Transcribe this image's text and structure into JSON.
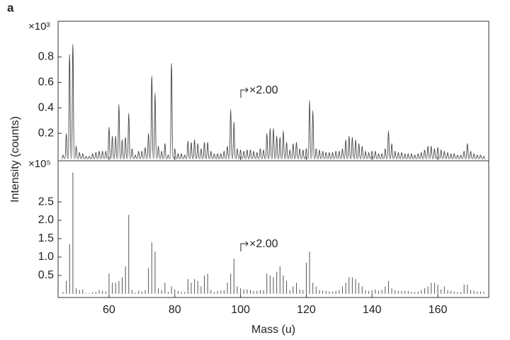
{
  "panel_label": "a",
  "y_label": "Intensity (counts)",
  "x_label": "Mass (u)",
  "chart_data": [
    {
      "type": "area",
      "multiplier": "×10³",
      "annotation": "×2.00",
      "color": "#444444",
      "x": [
        46,
        47,
        48,
        49,
        50,
        51,
        52,
        53,
        54,
        55,
        56,
        57,
        58,
        59,
        60,
        61,
        62,
        63,
        64,
        65,
        66,
        67,
        68,
        69,
        70,
        71,
        72,
        73,
        74,
        75,
        76,
        77,
        78,
        79,
        80,
        81,
        82,
        83,
        84,
        85,
        86,
        87,
        88,
        89,
        90,
        91,
        92,
        93,
        94,
        95,
        96,
        97,
        98,
        99,
        100,
        101,
        102,
        103,
        104,
        105,
        106,
        107,
        108,
        109,
        110,
        111,
        112,
        113,
        114,
        115,
        116,
        117,
        118,
        119,
        120,
        121,
        122,
        123,
        124,
        125,
        126,
        127,
        128,
        129,
        130,
        131,
        132,
        133,
        134,
        135,
        136,
        137,
        138,
        139,
        140,
        141,
        142,
        143,
        144,
        145,
        146,
        147,
        148,
        149,
        150,
        151,
        152,
        153,
        154,
        155,
        156,
        157,
        158,
        159,
        160,
        161,
        162,
        163,
        164,
        165,
        166,
        167,
        168,
        169,
        170,
        171,
        172,
        173,
        174
      ],
      "values": [
        0.03,
        0.2,
        0.82,
        0.9,
        0.1,
        0.05,
        0.04,
        0.02,
        0.02,
        0.04,
        0.05,
        0.06,
        0.06,
        0.06,
        0.25,
        0.18,
        0.18,
        0.43,
        0.15,
        0.17,
        0.36,
        0.08,
        0.03,
        0.06,
        0.06,
        0.09,
        0.2,
        0.65,
        0.52,
        0.1,
        0.06,
        0.12,
        0.03,
        0.75,
        0.08,
        0.04,
        0.04,
        0.03,
        0.14,
        0.13,
        0.15,
        0.12,
        0.08,
        0.13,
        0.13,
        0.06,
        0.04,
        0.04,
        0.04,
        0.06,
        0.1,
        0.39,
        0.29,
        0.08,
        0.07,
        0.06,
        0.07,
        0.07,
        0.06,
        0.05,
        0.08,
        0.07,
        0.2,
        0.24,
        0.24,
        0.18,
        0.17,
        0.22,
        0.13,
        0.07,
        0.12,
        0.13,
        0.08,
        0.07,
        0.08,
        0.46,
        0.38,
        0.08,
        0.07,
        0.06,
        0.05,
        0.05,
        0.05,
        0.06,
        0.06,
        0.08,
        0.15,
        0.18,
        0.17,
        0.15,
        0.12,
        0.1,
        0.06,
        0.05,
        0.06,
        0.06,
        0.04,
        0.04,
        0.08,
        0.22,
        0.12,
        0.06,
        0.05,
        0.05,
        0.04,
        0.04,
        0.04,
        0.03,
        0.04,
        0.05,
        0.07,
        0.1,
        0.1,
        0.08,
        0.09,
        0.07,
        0.06,
        0.05,
        0.04,
        0.04,
        0.03,
        0.03,
        0.06,
        0.12,
        0.06,
        0.04,
        0.03,
        0.03,
        0.02
      ],
      "xlim": [
        44.5,
        175.5
      ],
      "xticks": [
        60,
        80,
        100,
        120,
        140,
        160
      ],
      "ylim": [
        -0.01,
        1.08
      ],
      "yticks": [
        0.2,
        0.4,
        0.6,
        0.8
      ]
    },
    {
      "type": "bar",
      "multiplier": "×10⁵",
      "annotation": "×2.00",
      "color": "#555555",
      "x": [
        46,
        47,
        48,
        49,
        50,
        51,
        52,
        53,
        54,
        55,
        56,
        57,
        58,
        59,
        60,
        61,
        62,
        63,
        64,
        65,
        66,
        67,
        68,
        69,
        70,
        71,
        72,
        73,
        74,
        75,
        76,
        77,
        78,
        79,
        80,
        81,
        82,
        83,
        84,
        85,
        86,
        87,
        88,
        89,
        90,
        91,
        92,
        93,
        94,
        95,
        96,
        97,
        98,
        99,
        100,
        101,
        102,
        103,
        104,
        105,
        106,
        107,
        108,
        109,
        110,
        111,
        112,
        113,
        114,
        115,
        116,
        117,
        118,
        119,
        120,
        121,
        122,
        123,
        124,
        125,
        126,
        127,
        128,
        129,
        130,
        131,
        132,
        133,
        134,
        135,
        136,
        137,
        138,
        139,
        140,
        141,
        142,
        143,
        144,
        145,
        146,
        147,
        148,
        149,
        150,
        151,
        152,
        153,
        154,
        155,
        156,
        157,
        158,
        159,
        160,
        161,
        162,
        163,
        164,
        165,
        166,
        167,
        168,
        169,
        170,
        171,
        172,
        173,
        174
      ],
      "values": [
        0.05,
        0.35,
        1.35,
        3.3,
        0.15,
        0.1,
        0.12,
        0.02,
        0.02,
        0.05,
        0.05,
        0.1,
        0.08,
        0.06,
        0.55,
        0.3,
        0.3,
        0.35,
        0.45,
        0.75,
        2.15,
        0.1,
        0.03,
        0.08,
        0.06,
        0.1,
        0.7,
        1.4,
        1.15,
        0.15,
        0.1,
        0.3,
        0.05,
        0.2,
        0.12,
        0.08,
        0.05,
        0.05,
        0.4,
        0.3,
        0.4,
        0.35,
        0.2,
        0.5,
        0.55,
        0.1,
        0.05,
        0.08,
        0.08,
        0.1,
        0.3,
        0.55,
        0.95,
        0.2,
        0.15,
        0.12,
        0.12,
        0.1,
        0.08,
        0.08,
        0.1,
        0.1,
        0.55,
        0.5,
        0.45,
        0.6,
        0.75,
        0.5,
        0.35,
        0.1,
        0.2,
        0.3,
        0.12,
        0.1,
        0.85,
        1.15,
        0.3,
        0.2,
        0.1,
        0.08,
        0.08,
        0.06,
        0.06,
        0.08,
        0.1,
        0.2,
        0.3,
        0.45,
        0.45,
        0.4,
        0.3,
        0.2,
        0.1,
        0.08,
        0.1,
        0.12,
        0.08,
        0.1,
        0.2,
        0.35,
        0.15,
        0.1,
        0.08,
        0.08,
        0.08,
        0.08,
        0.06,
        0.05,
        0.06,
        0.1,
        0.15,
        0.2,
        0.3,
        0.3,
        0.25,
        0.12,
        0.2,
        0.1,
        0.08,
        0.06,
        0.05,
        0.05,
        0.25,
        0.25,
        0.1,
        0.08,
        0.06,
        0.06,
        0.05
      ],
      "xlim": [
        44.5,
        175.5
      ],
      "xticks": [
        60,
        80,
        100,
        120,
        140,
        160
      ],
      "ylim": [
        -0.1,
        3.6
      ],
      "yticks": [
        0.5,
        {
          "value": 1,
          "label": "1.0"
        },
        1.5,
        {
          "value": 2,
          "label": "2.0"
        },
        2.5
      ]
    }
  ]
}
